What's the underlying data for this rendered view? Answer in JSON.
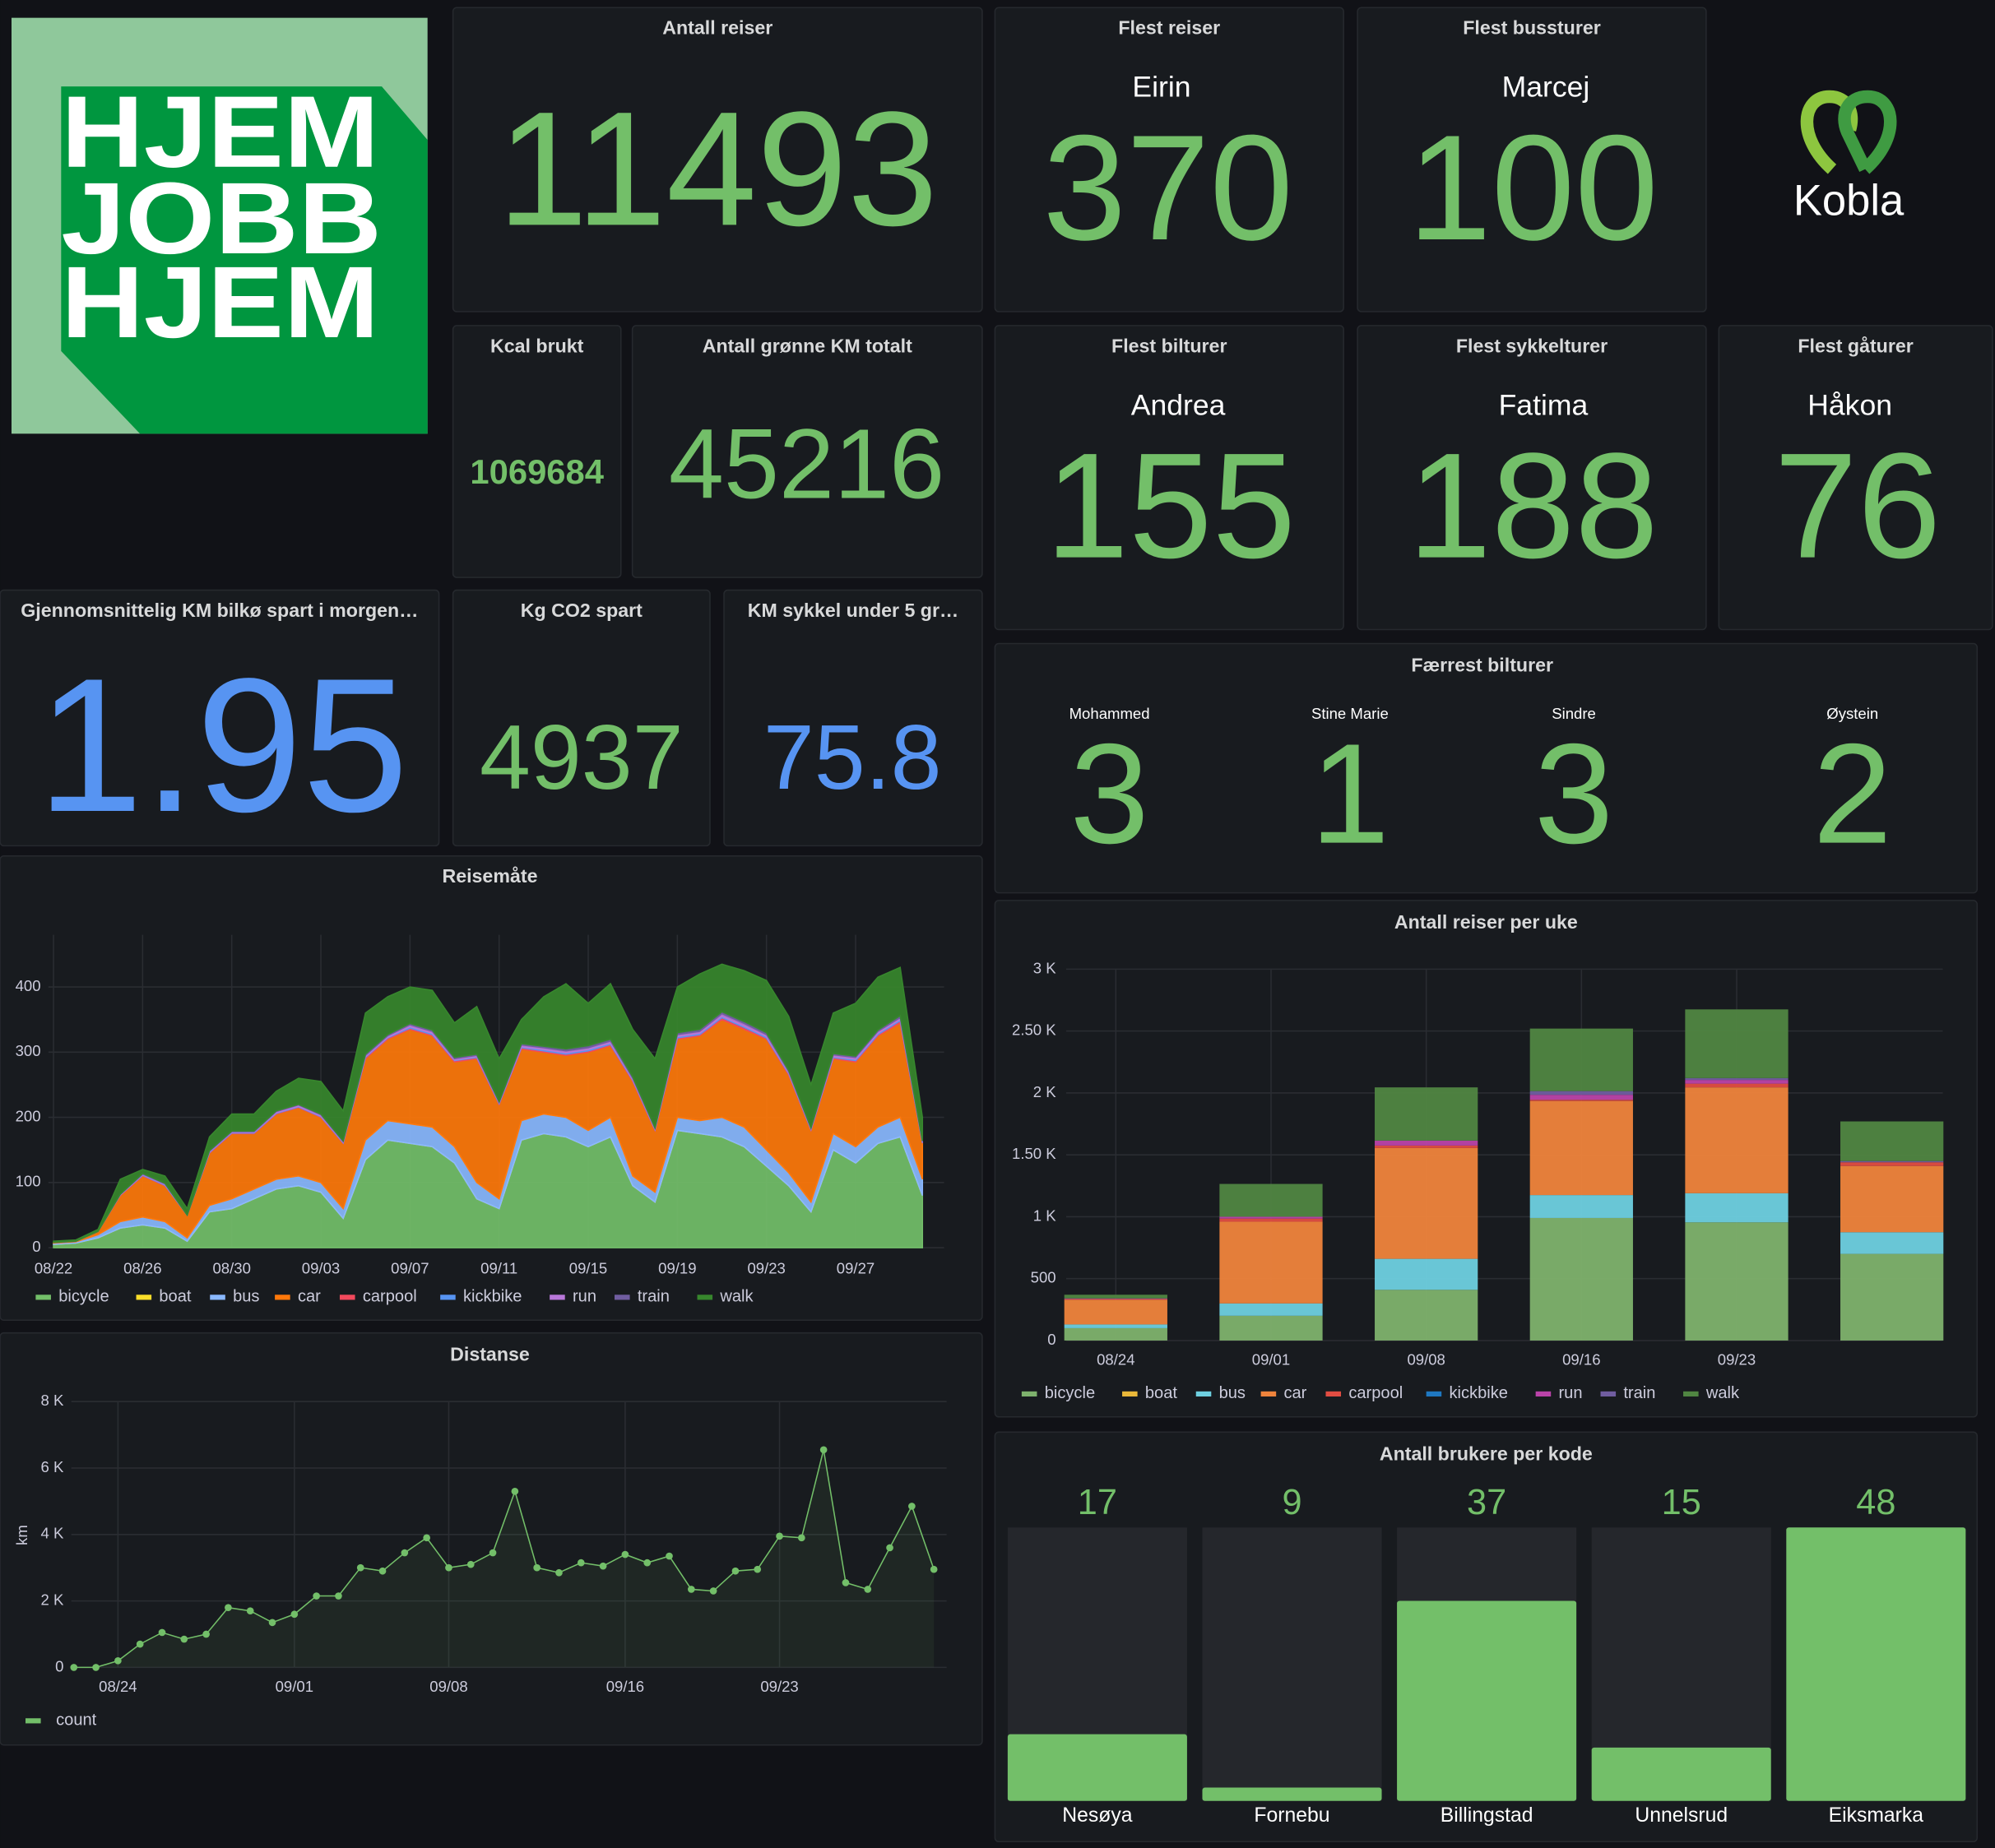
{
  "logo": {
    "lines": [
      "HJEM",
      "JOBB",
      "HJEM"
    ]
  },
  "brand": "Kobla",
  "stats": [
    {
      "title": "Antall reiser",
      "value": 11493,
      "color": "#73bf69"
    },
    {
      "title": "Flest reiser",
      "name": "Eirin",
      "value": 370,
      "color": "#73bf69"
    },
    {
      "title": "Flest bussturer",
      "name": "Marcej",
      "value": 100,
      "color": "#73bf69"
    },
    {
      "title": "Kcal brukt",
      "value": 1069684,
      "color": "#73bf69"
    },
    {
      "title": "Antall grønne KM totalt",
      "value": 45216,
      "color": "#73bf69"
    },
    {
      "title": "Flest bilturer",
      "name": "Andrea",
      "value": 155,
      "color": "#73bf69"
    },
    {
      "title": "Flest sykkelturer",
      "name": "Fatima",
      "value": 188,
      "color": "#73bf69"
    },
    {
      "title": "Flest gåturer",
      "name": "Håkon",
      "value": 76,
      "color": "#73bf69"
    },
    {
      "title": "Gjennomsnittelig KM bilkø spart i morgen…",
      "value": 1.95,
      "color": "#5794f2"
    },
    {
      "title": "Kg CO2 spart",
      "value": 4937,
      "color": "#73bf69"
    },
    {
      "title": "KM sykkel under 5 gr…",
      "value": 75.8,
      "color": "#5794f2"
    }
  ],
  "fewest": {
    "title": "Færrest bilturer",
    "color": "#73bf69",
    "entries": [
      {
        "name": "Mohammed",
        "value": 3
      },
      {
        "name": "Stine Marie",
        "value": 1
      },
      {
        "name": "Sindre",
        "value": 3
      },
      {
        "name": "Øystein",
        "value": 2
      }
    ]
  },
  "chart_data": [
    {
      "type": "area",
      "stacked": true,
      "title": "Reisemåte",
      "grid": true,
      "x": [
        "08/22",
        "08/23",
        "08/24",
        "08/25",
        "08/26",
        "08/27",
        "08/28",
        "08/29",
        "08/30",
        "08/31",
        "09/01",
        "09/02",
        "09/03",
        "09/04",
        "09/05",
        "09/06",
        "09/07",
        "09/08",
        "09/09",
        "09/10",
        "09/11",
        "09/12",
        "09/13",
        "09/14",
        "09/15",
        "09/16",
        "09/17",
        "09/18",
        "09/19",
        "09/20",
        "09/21",
        "09/22",
        "09/23",
        "09/24",
        "09/25",
        "09/26",
        "09/27",
        "09/28",
        "09/29",
        "09/30"
      ],
      "xticks": [
        "08/22",
        "08/26",
        "08/30",
        "09/03",
        "09/07",
        "09/11",
        "09/15",
        "09/19",
        "09/23",
        "09/27"
      ],
      "ylim": [
        0,
        480
      ],
      "yticks": [
        0,
        100,
        200,
        300,
        400
      ],
      "series": [
        {
          "name": "bicycle",
          "color": "#73bf69",
          "values": [
            5,
            7,
            15,
            30,
            35,
            30,
            10,
            55,
            60,
            75,
            90,
            95,
            85,
            45,
            135,
            165,
            160,
            155,
            130,
            75,
            60,
            165,
            175,
            170,
            155,
            170,
            95,
            70,
            180,
            175,
            170,
            155,
            125,
            95,
            55,
            150,
            130,
            160,
            170,
            80
          ]
        },
        {
          "name": "boat",
          "color": "#fade2a",
          "values": [
            0,
            0,
            0,
            0,
            0,
            0,
            0,
            0,
            0,
            0,
            0,
            0,
            0,
            0,
            0,
            0,
            0,
            0,
            0,
            0,
            0,
            0,
            0,
            0,
            0,
            0,
            0,
            0,
            0,
            0,
            0,
            0,
            0,
            0,
            0,
            0,
            0,
            0,
            0,
            0
          ]
        },
        {
          "name": "bus",
          "color": "#8ab8ff",
          "values": [
            2,
            2,
            5,
            10,
            12,
            10,
            5,
            10,
            15,
            15,
            15,
            15,
            15,
            15,
            30,
            30,
            30,
            30,
            25,
            25,
            15,
            30,
            30,
            30,
            25,
            30,
            15,
            15,
            20,
            20,
            30,
            30,
            25,
            20,
            15,
            25,
            25,
            25,
            30,
            25
          ]
        },
        {
          "name": "car",
          "color": "#ff780a",
          "values": [
            1,
            1,
            5,
            40,
            63,
            55,
            35,
            80,
            100,
            85,
            100,
            105,
            100,
            100,
            125,
            125,
            145,
            140,
            130,
            190,
            145,
            110,
            95,
            95,
            120,
            110,
            145,
            95,
            120,
            130,
            150,
            150,
            170,
            150,
            110,
            115,
            130,
            140,
            145,
            55
          ]
        },
        {
          "name": "carpool",
          "color": "#f2495c",
          "values": [
            0,
            0,
            0,
            1,
            1,
            1,
            0,
            1,
            1,
            1,
            1,
            1,
            1,
            1,
            2,
            2,
            2,
            2,
            2,
            2,
            1,
            2,
            2,
            2,
            2,
            2,
            2,
            1,
            2,
            2,
            3,
            3,
            2,
            2,
            1,
            2,
            2,
            2,
            3,
            1
          ]
        },
        {
          "name": "kickbike",
          "color": "#5794f2",
          "values": [
            0,
            0,
            0,
            0,
            1,
            1,
            0,
            1,
            1,
            1,
            1,
            1,
            1,
            1,
            1,
            1,
            2,
            2,
            1,
            1,
            1,
            1,
            2,
            2,
            2,
            2,
            1,
            1,
            2,
            2,
            2,
            2,
            2,
            1,
            1,
            1,
            2,
            2,
            2,
            1
          ]
        },
        {
          "name": "run",
          "color": "#b877d9",
          "values": [
            0,
            0,
            0,
            1,
            1,
            1,
            0,
            1,
            1,
            1,
            2,
            2,
            2,
            1,
            2,
            2,
            3,
            3,
            2,
            2,
            1,
            3,
            3,
            3,
            3,
            3,
            2,
            1,
            3,
            3,
            4,
            4,
            3,
            2,
            1,
            3,
            3,
            3,
            3,
            1
          ]
        },
        {
          "name": "train",
          "color": "#705da0",
          "values": [
            0,
            0,
            0,
            0,
            1,
            1,
            0,
            1,
            1,
            1,
            1,
            1,
            1,
            1,
            2,
            2,
            2,
            2,
            2,
            2,
            1,
            2,
            2,
            3,
            3,
            3,
            2,
            1,
            3,
            3,
            3,
            3,
            3,
            2,
            1,
            2,
            2,
            2,
            3,
            1
          ]
        },
        {
          "name": "walk",
          "color": "#37872d",
          "values": [
            2,
            2,
            3,
            23,
            6,
            11,
            10,
            21,
            26,
            26,
            30,
            40,
            50,
            46,
            63,
            58,
            56,
            61,
            53,
            73,
            66,
            37,
            76,
            100,
            65,
            85,
            73,
            106,
            70,
            85,
            73,
            78,
            80,
            83,
            66,
            62,
            81,
            81,
            74,
            36
          ]
        }
      ]
    },
    {
      "type": "line",
      "title": "Distanse",
      "y_label": "km",
      "grid": true,
      "x": [
        "08/22",
        "08/23",
        "08/24",
        "08/25",
        "08/26",
        "08/27",
        "08/28",
        "08/29",
        "08/30",
        "08/31",
        "09/01",
        "09/02",
        "09/03",
        "09/04",
        "09/05",
        "09/06",
        "09/07",
        "09/08",
        "09/09",
        "09/10",
        "09/11",
        "09/12",
        "09/13",
        "09/14",
        "09/15",
        "09/16",
        "09/17",
        "09/18",
        "09/19",
        "09/20",
        "09/21",
        "09/22",
        "09/23",
        "09/24",
        "09/25",
        "09/26",
        "09/27",
        "09/28",
        "09/29",
        "09/30"
      ],
      "xticks": [
        "08/24",
        "09/01",
        "09/08",
        "09/16",
        "09/23"
      ],
      "ylim": [
        0,
        8000
      ],
      "yticks": [
        0,
        {
          "value": 2000,
          "label": "2 K"
        },
        {
          "value": 4000,
          "label": "4 K"
        },
        {
          "value": 6000,
          "label": "6 K"
        },
        {
          "value": 8000,
          "label": "8 K"
        }
      ],
      "series": [
        {
          "name": "count",
          "color": "#73bf69",
          "values": [
            0,
            0,
            200,
            700,
            1050,
            850,
            1000,
            1800,
            1700,
            1350,
            1600,
            2150,
            2150,
            3000,
            2900,
            3450,
            3900,
            3000,
            3100,
            3450,
            5300,
            3000,
            2850,
            3150,
            3050,
            3400,
            3150,
            3350,
            2350,
            2300,
            2900,
            2950,
            3950,
            3900,
            6550,
            2550,
            2350,
            3600,
            4850,
            2950
          ]
        }
      ]
    },
    {
      "type": "bar",
      "stacked": true,
      "title": "Antall reiser per uke",
      "grid": true,
      "categories": [
        "08/24",
        "09/01",
        "09/08",
        "09/16",
        "09/23",
        null
      ],
      "ylim": [
        0,
        3000
      ],
      "yticks": [
        0,
        500,
        {
          "value": 1000,
          "label": "1 K"
        },
        {
          "value": 1500,
          "label": "1.50 K"
        },
        {
          "value": 2000,
          "label": "2 K"
        },
        {
          "value": 2500,
          "label": "2.50 K"
        },
        {
          "value": 3000,
          "label": "3 K"
        }
      ],
      "series": [
        {
          "name": "bicycle",
          "color": "#7eb26d",
          "values": [
            100,
            200,
            410,
            990,
            955,
            700
          ]
        },
        {
          "name": "boat",
          "color": "#eab839",
          "values": [
            0,
            0,
            0,
            0,
            0,
            0
          ]
        },
        {
          "name": "bus",
          "color": "#6ed0e0",
          "values": [
            30,
            100,
            250,
            185,
            235,
            175
          ]
        },
        {
          "name": "car",
          "color": "#ef843c",
          "values": [
            200,
            660,
            895,
            760,
            855,
            535
          ]
        },
        {
          "name": "carpool",
          "color": "#e24d42",
          "values": [
            5,
            25,
            20,
            10,
            30,
            30
          ]
        },
        {
          "name": "kickbike",
          "color": "#1f78c1",
          "values": [
            0,
            0,
            0,
            0,
            0,
            0
          ]
        },
        {
          "name": "run",
          "color": "#ba43a9",
          "values": [
            5,
            15,
            40,
            40,
            30,
            0
          ]
        },
        {
          "name": "train",
          "color": "#705da0",
          "values": [
            0,
            0,
            0,
            30,
            15,
            10
          ]
        },
        {
          "name": "walk",
          "color": "#508642",
          "values": [
            30,
            265,
            430,
            505,
            555,
            320
          ]
        }
      ]
    },
    {
      "type": "bargauge",
      "title": "Antall brukere per kode",
      "color": "#73bf69",
      "categories": [
        "Nesøya",
        "Fornebu",
        "Billingstad",
        "Unnelsrud",
        "Eiksmarka"
      ],
      "values": [
        17,
        9,
        37,
        15,
        48
      ],
      "ylim": [
        7,
        48
      ]
    }
  ]
}
